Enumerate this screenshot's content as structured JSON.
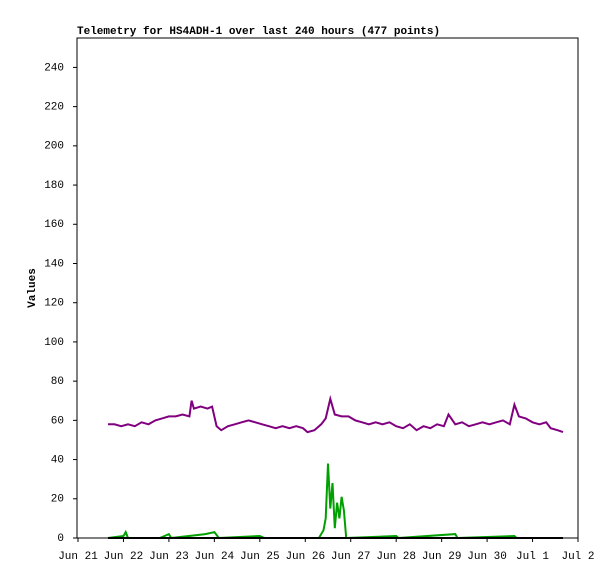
{
  "chart_data": {
    "type": "line",
    "title": "Telemetry for HS4ADH-1 over last 240 hours (477 points)",
    "ylabel": "Values",
    "xlim": [
      0,
      11
    ],
    "ylim": [
      0,
      255
    ],
    "xticks": [
      {
        "value": 0,
        "label": "Jun 21"
      },
      {
        "value": 1,
        "label": "Jun 22"
      },
      {
        "value": 2,
        "label": "Jun 23"
      },
      {
        "value": 3,
        "label": "Jun 24"
      },
      {
        "value": 4,
        "label": "Jun 25"
      },
      {
        "value": 5,
        "label": "Jun 26"
      },
      {
        "value": 6,
        "label": "Jun 27"
      },
      {
        "value": 7,
        "label": "Jun 28"
      },
      {
        "value": 8,
        "label": "Jun 29"
      },
      {
        "value": 9,
        "label": "Jun 30"
      },
      {
        "value": 10,
        "label": "Jul 1"
      },
      {
        "value": 11,
        "label": "Jul 2"
      }
    ],
    "yticks": [
      0,
      20,
      40,
      60,
      80,
      100,
      120,
      140,
      160,
      180,
      200,
      220,
      240
    ],
    "series": [
      {
        "color": "#800080",
        "x": [
          0.66,
          0.8,
          0.95,
          1.1,
          1.25,
          1.4,
          1.55,
          1.7,
          1.85,
          2.0,
          2.15,
          2.3,
          2.45,
          2.5,
          2.55,
          2.7,
          2.85,
          2.95,
          3.05,
          3.15,
          3.3,
          3.45,
          3.6,
          3.75,
          3.9,
          4.05,
          4.2,
          4.35,
          4.5,
          4.65,
          4.8,
          4.95,
          5.05,
          5.2,
          5.35,
          5.45,
          5.55,
          5.65,
          5.8,
          5.95,
          6.1,
          6.25,
          6.4,
          6.55,
          6.7,
          6.85,
          7.0,
          7.15,
          7.3,
          7.45,
          7.6,
          7.75,
          7.9,
          8.05,
          8.15,
          8.3,
          8.45,
          8.6,
          8.75,
          8.9,
          9.05,
          9.2,
          9.35,
          9.5,
          9.6,
          9.7,
          9.85,
          10.0,
          10.15,
          10.3,
          10.4,
          10.55,
          10.67
        ],
        "values": [
          58,
          58,
          57,
          58,
          57,
          59,
          58,
          60,
          61,
          62,
          62,
          63,
          62,
          70,
          66,
          67,
          66,
          67,
          57,
          55,
          57,
          58,
          59,
          60,
          59,
          58,
          57,
          56,
          57,
          56,
          57,
          56,
          54,
          55,
          58,
          61,
          71,
          63,
          62,
          62,
          60,
          59,
          58,
          59,
          58,
          59,
          57,
          56,
          58,
          55,
          57,
          56,
          58,
          57,
          63,
          58,
          59,
          57,
          58,
          59,
          58,
          59,
          60,
          58,
          68,
          62,
          61,
          59,
          58,
          59,
          56,
          55,
          54
        ]
      },
      {
        "color": "#00a000",
        "x": [
          0.66,
          1.0,
          1.05,
          1.1,
          1.8,
          2.0,
          2.05,
          2.8,
          3.0,
          3.1,
          4.0,
          4.1,
          5.3,
          5.4,
          5.45,
          5.5,
          5.55,
          5.6,
          5.65,
          5.7,
          5.75,
          5.8,
          5.85,
          5.9,
          7.0,
          7.05,
          8.3,
          8.35,
          9.6,
          9.65,
          10.67
        ],
        "values": [
          0,
          1,
          3,
          0,
          0,
          2,
          0,
          2,
          3,
          0,
          1,
          0,
          0,
          4,
          10,
          38,
          15,
          28,
          5,
          18,
          10,
          21,
          14,
          0,
          1,
          0,
          2,
          0,
          1,
          0,
          0
        ]
      },
      {
        "color": "#000000",
        "x": [
          0.66,
          10.67
        ],
        "values": [
          0,
          0
        ]
      }
    ]
  }
}
